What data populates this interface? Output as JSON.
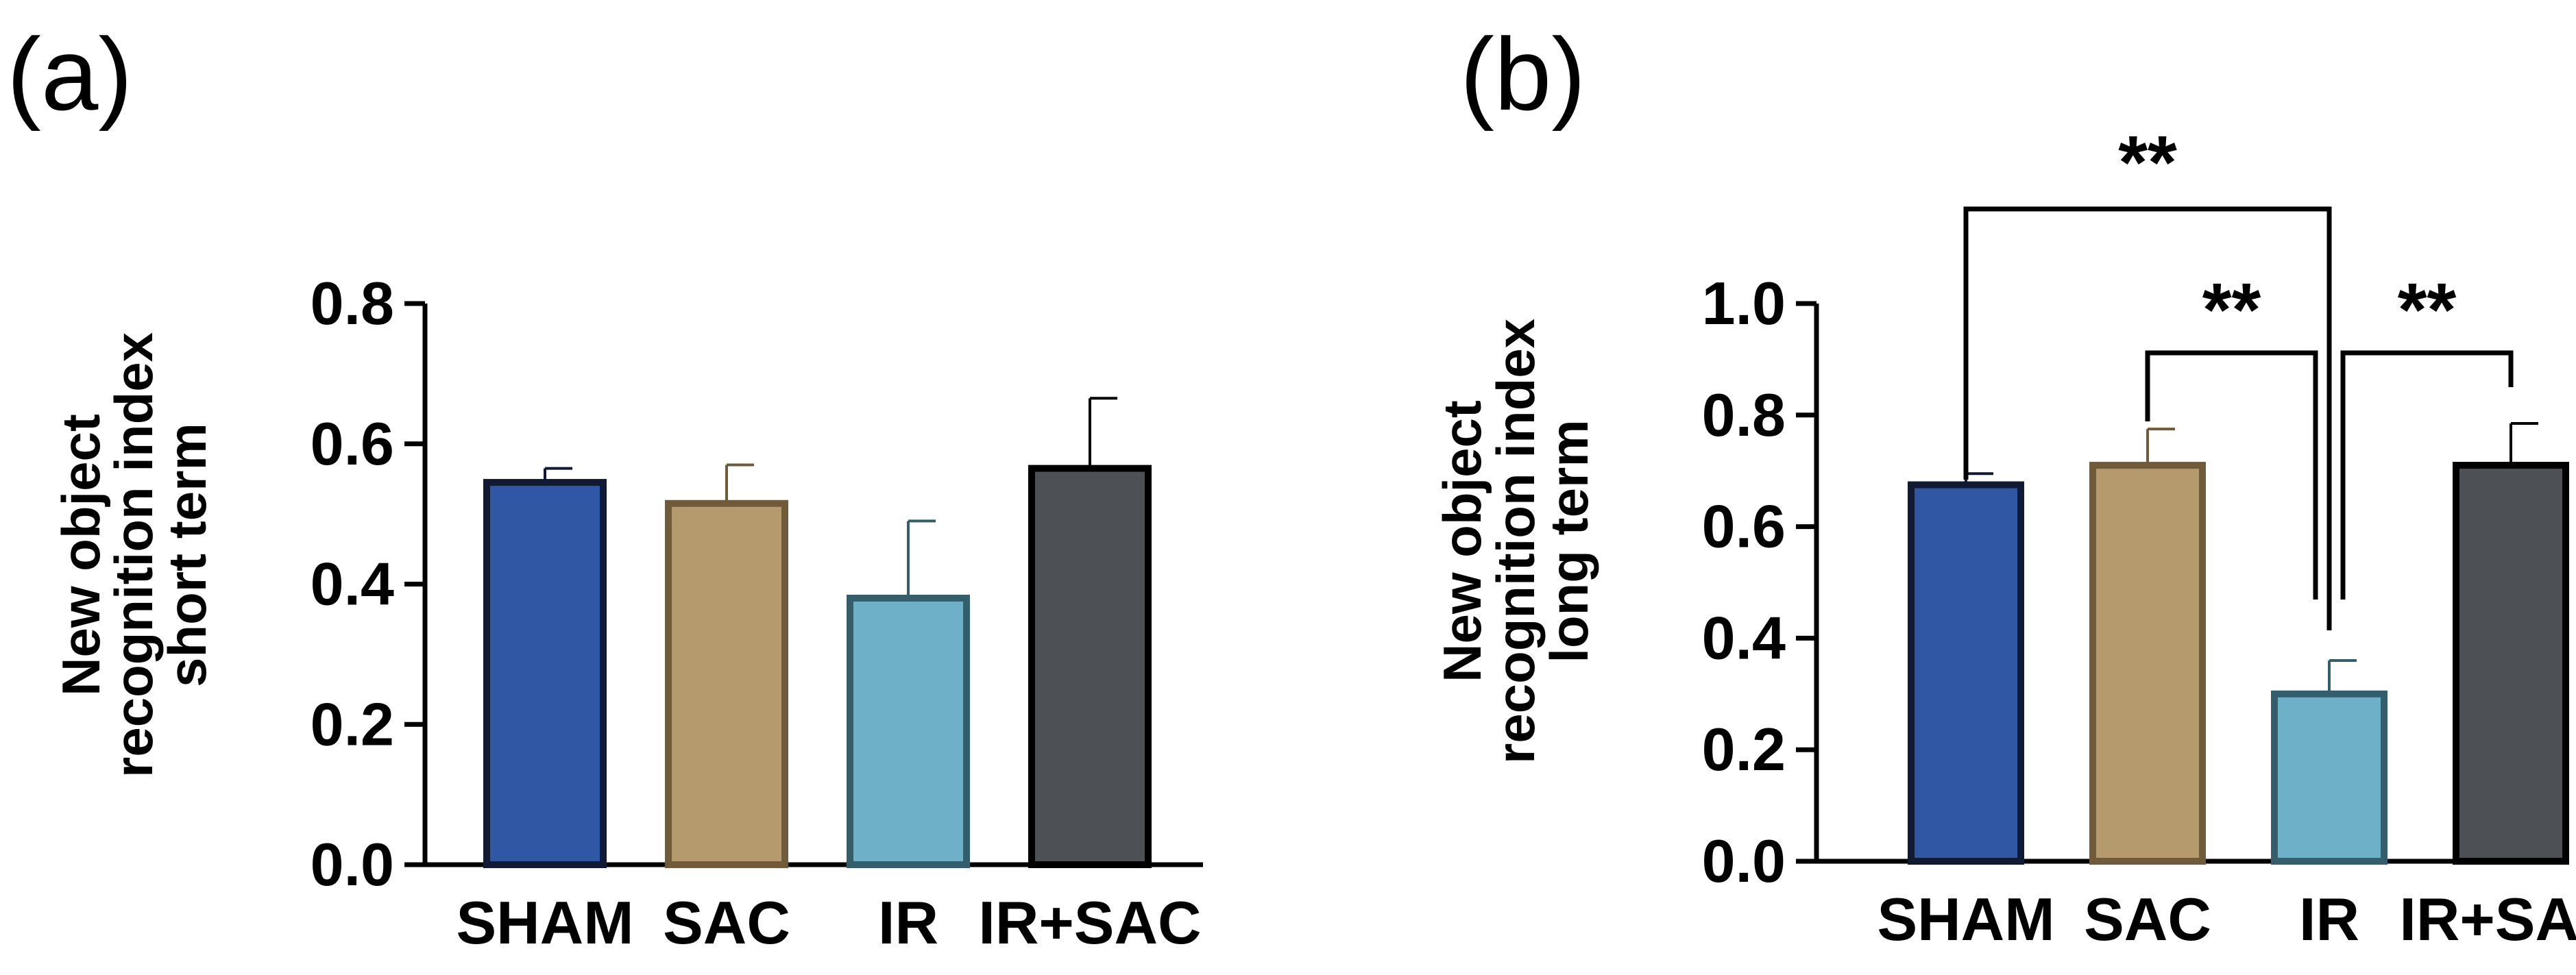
{
  "chart_data": [
    {
      "type": "bar",
      "panel_label": "(a)",
      "categories": [
        "SHAM",
        "SAC",
        "IR",
        "IR+SAC"
      ],
      "values": [
        0.545,
        0.515,
        0.38,
        0.565
      ],
      "errors": [
        0.02,
        0.055,
        0.11,
        0.1
      ],
      "ylabel": [
        "New object",
        "recognition index",
        "short term"
      ],
      "ylim": [
        0,
        0.8
      ],
      "yticks": [
        "0.0",
        "0.2",
        "0.4",
        "0.6",
        "0.8"
      ],
      "colors": {
        "fill": [
          "#2f57a3",
          "#b59a6e",
          "#6fb0c9",
          "#4d5156"
        ],
        "edge": [
          "#111a33",
          "#6f5b3a",
          "#345e6b",
          "#000000"
        ]
      },
      "significance": []
    },
    {
      "type": "bar",
      "panel_label": "(b)",
      "categories": [
        "SHAM",
        "SAC",
        "IR",
        "IR+SAC"
      ],
      "values": [
        0.675,
        0.71,
        0.3,
        0.71
      ],
      "errors": [
        0.02,
        0.065,
        0.06,
        0.075
      ],
      "ylabel": [
        "New object",
        "recognition index",
        "long term"
      ],
      "ylim": [
        0,
        1.0
      ],
      "yticks": [
        "0.0",
        "0.2",
        "0.4",
        "0.6",
        "0.8",
        "1.0"
      ],
      "colors": {
        "fill": [
          "#2f57a3",
          "#b59a6e",
          "#6fb0c9",
          "#4d5156"
        ],
        "edge": [
          "#111a33",
          "#6f5b3a",
          "#345e6b",
          "#000000"
        ]
      },
      "significance": [
        {
          "from": "SHAM",
          "to": "IR",
          "label": "**"
        },
        {
          "from": "SAC",
          "to": "IR",
          "label": "**"
        },
        {
          "from": "IR",
          "to": "IR+SAC",
          "label": "**"
        }
      ]
    }
  ]
}
